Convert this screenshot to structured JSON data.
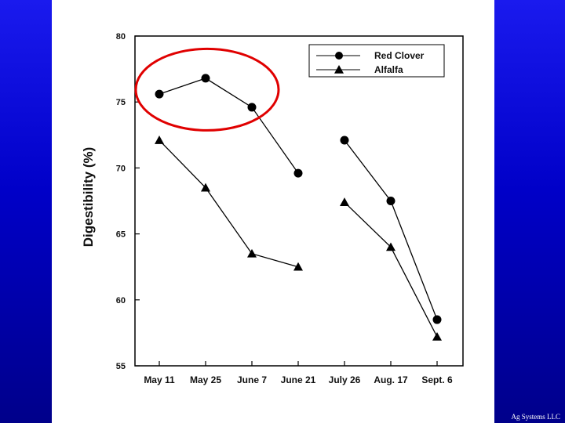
{
  "slide": {
    "background_colors": [
      "#1a1aee",
      "#0000c8",
      "#00008a"
    ],
    "panel_color": "#ffffff",
    "footer": "Ag Systems LLC"
  },
  "chart_data": {
    "type": "line",
    "categories": [
      "May 11",
      "May 25",
      "June 7",
      "June 21",
      "July 26",
      "Aug. 17",
      "Sept. 6"
    ],
    "ylabel": "Digestibility (%)",
    "xlabel": "",
    "ylim": [
      55,
      80
    ],
    "yticks": [
      55,
      60,
      65,
      70,
      75,
      80
    ],
    "grid": false,
    "legend_position": "top-right",
    "series": [
      {
        "name": "Red Clover",
        "marker": "circle",
        "color": "#000000",
        "segments": [
          [
            {
              "x": "May 11",
              "y": 75.6
            },
            {
              "x": "May 25",
              "y": 76.8
            },
            {
              "x": "June 7",
              "y": 74.6
            },
            {
              "x": "June 21",
              "y": 69.6
            }
          ],
          [
            {
              "x": "July 26",
              "y": 72.1
            },
            {
              "x": "Aug. 17",
              "y": 67.5
            },
            {
              "x": "Sept. 6",
              "y": 58.5
            }
          ]
        ]
      },
      {
        "name": "Alfalfa",
        "marker": "triangle",
        "color": "#000000",
        "segments": [
          [
            {
              "x": "May 11",
              "y": 72.1
            },
            {
              "x": "May 25",
              "y": 68.5
            },
            {
              "x": "June 7",
              "y": 63.5
            },
            {
              "x": "June 21",
              "y": 62.5
            }
          ],
          [
            {
              "x": "July 26",
              "y": 67.4
            },
            {
              "x": "Aug. 17",
              "y": 64.0
            },
            {
              "x": "Sept. 6",
              "y": 57.2
            }
          ]
        ]
      }
    ],
    "annotations": [
      {
        "type": "ellipse",
        "color": "#e00000",
        "encloses": {
          "series": "Red Clover",
          "from": "May 11",
          "to": "June 7"
        }
      }
    ]
  }
}
